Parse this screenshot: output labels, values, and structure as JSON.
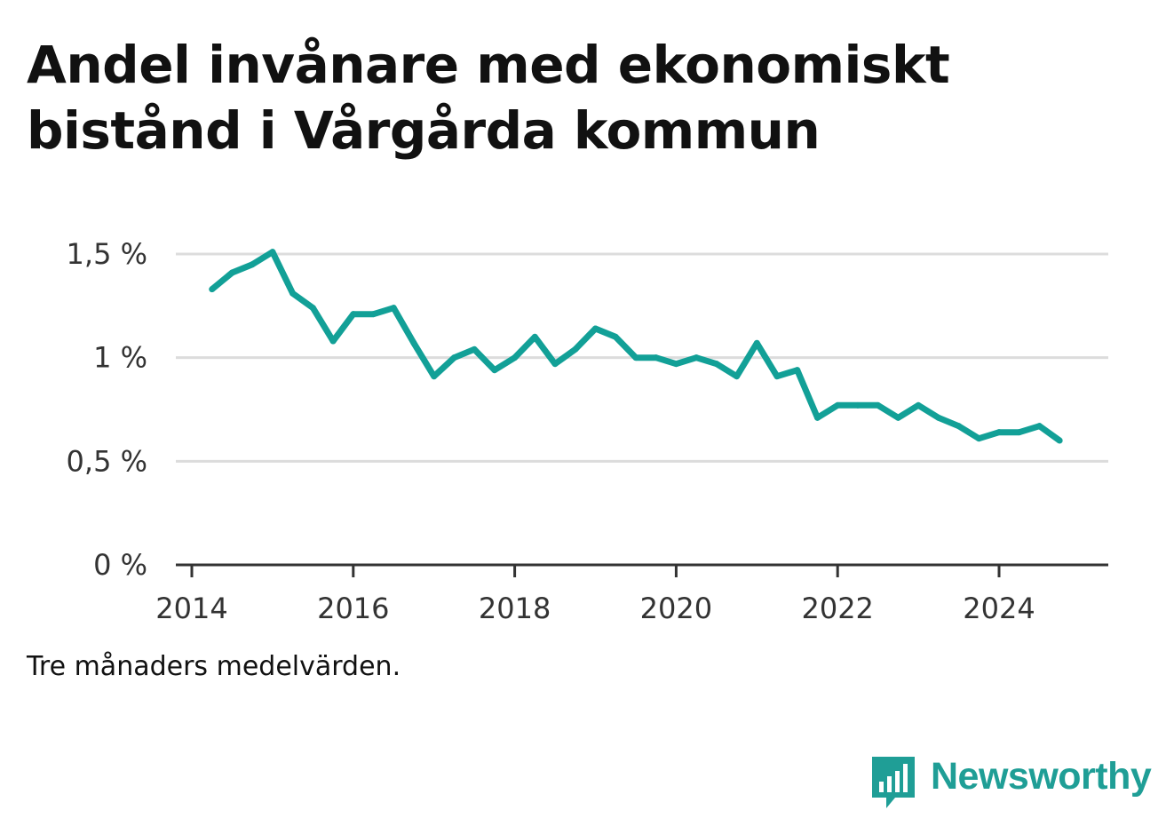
{
  "title": "Andel invånare med ekonomiskt bistånd i Vårgårda kommun",
  "note": "Tre månaders medelvärden.",
  "brand": {
    "name": "Newsworthy",
    "icon": "newsworthy-logo-icon",
    "color": "#1f9e96"
  },
  "chart_data": {
    "type": "line",
    "title": "Andel invånare med ekonomiskt bistånd i Vårgårda kommun",
    "xlabel": "",
    "ylabel": "",
    "ylim": [
      0,
      1.5
    ],
    "xlim": [
      "2014-01",
      "2025-06"
    ],
    "grid": true,
    "line_color": "#12a097",
    "y_ticks": [
      {
        "value": 0,
        "label": "0 %"
      },
      {
        "value": 0.5,
        "label": "0,5 %"
      },
      {
        "value": 1,
        "label": "1 %"
      },
      {
        "value": 1.5,
        "label": "1,5 %"
      }
    ],
    "x_ticks": [
      {
        "value": "2014-01",
        "label": "2014"
      },
      {
        "value": "2016-01",
        "label": "2016"
      },
      {
        "value": "2018-01",
        "label": "2018"
      },
      {
        "value": "2020-01",
        "label": "2020"
      },
      {
        "value": "2022-01",
        "label": "2022"
      },
      {
        "value": "2024-01",
        "label": "2024"
      }
    ],
    "series": [
      {
        "x": [
          "2014-04",
          "2014-07",
          "2014-10",
          "2015-01",
          "2015-04",
          "2015-07",
          "2015-10",
          "2016-01",
          "2016-04",
          "2016-07",
          "2016-10",
          "2017-01",
          "2017-04",
          "2017-07",
          "2017-10",
          "2018-01",
          "2018-04",
          "2018-07",
          "2018-10",
          "2019-01",
          "2019-04",
          "2019-07",
          "2019-10",
          "2020-01",
          "2020-04",
          "2020-07",
          "2020-10",
          "2021-01",
          "2021-04",
          "2021-07",
          "2021-10",
          "2022-01",
          "2022-04",
          "2022-07",
          "2022-10",
          "2023-01",
          "2023-04",
          "2023-07",
          "2023-10",
          "2024-01",
          "2024-04",
          "2024-07",
          "2024-10"
        ],
        "values": [
          1.33,
          1.41,
          1.45,
          1.51,
          1.31,
          1.24,
          1.08,
          1.21,
          1.21,
          1.24,
          1.07,
          0.91,
          1.0,
          1.04,
          0.94,
          1.0,
          1.1,
          0.97,
          1.04,
          1.14,
          1.1,
          1.0,
          1.0,
          0.97,
          1.0,
          0.97,
          0.91,
          1.07,
          0.91,
          0.94,
          0.71,
          0.77,
          0.77,
          0.77,
          0.71,
          0.77,
          0.71,
          0.67,
          0.61,
          0.64,
          0.64,
          0.67,
          0.6
        ]
      }
    ]
  }
}
